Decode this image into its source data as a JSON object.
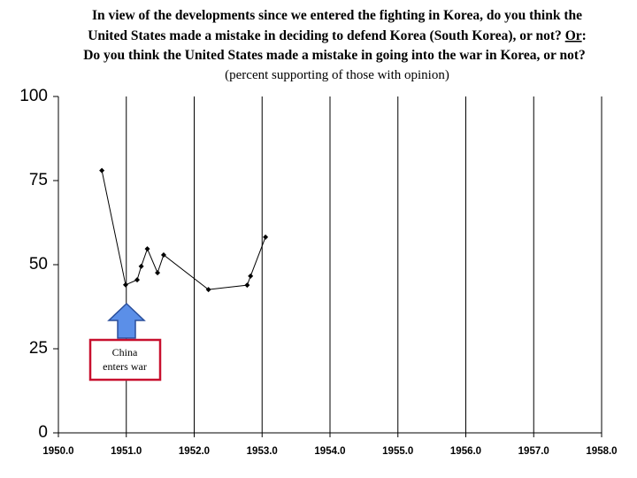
{
  "chart_data": {
    "type": "line",
    "title": [
      "In view of the developments since we entered the fighting in Korea, do you think the",
      "United States made a mistake in deciding to defend Korea (South Korea), or not?",
      "Or",
      ":",
      "Do you think the United States made a mistake in going into the war in Korea, or not?"
    ],
    "subtitle": "(percent supporting of those with opinion)",
    "x": [
      1950.64,
      1950.99,
      1951.16,
      1951.22,
      1951.31,
      1951.46,
      1951.55,
      1952.21,
      1952.78,
      1952.83,
      1953.05
    ],
    "series": [
      {
        "color": "#000000",
        "values": [
          78,
          44,
          45.5,
          49.5,
          54.7,
          47.6,
          52.9,
          42.6,
          43.9,
          46.6,
          58.2
        ]
      }
    ],
    "xlim": [
      1950,
      1958
    ],
    "xticks": [
      {
        "value": 1950,
        "label": "1950.0"
      },
      {
        "value": 1951,
        "label": "1951.0"
      },
      {
        "value": 1952,
        "label": "1952.0"
      },
      {
        "value": 1953,
        "label": "1953.0"
      },
      {
        "value": 1954,
        "label": "1954.0"
      },
      {
        "value": 1955,
        "label": "1955.0"
      },
      {
        "value": 1956,
        "label": "1956.0"
      },
      {
        "value": 1957,
        "label": "1957.0"
      },
      {
        "value": 1958,
        "label": "1958.0"
      }
    ],
    "ylim": [
      0,
      100
    ],
    "yticks": [
      0,
      25,
      50,
      75,
      100
    ],
    "grid": true,
    "annotation": [
      "China",
      "enters war"
    ]
  }
}
